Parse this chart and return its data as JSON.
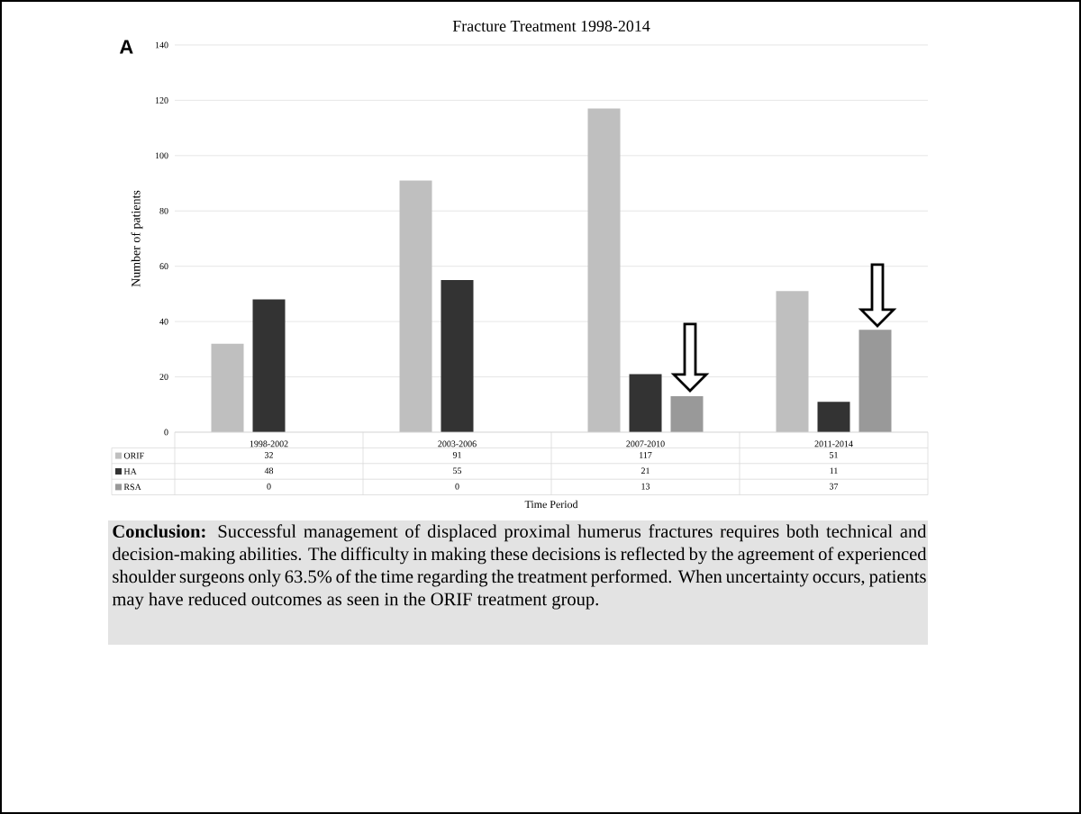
{
  "chart_data": {
    "type": "bar",
    "title": "Fracture Treatment 1998-2014",
    "xlabel": "Time Period",
    "ylabel": "Number of patients",
    "categories": [
      "1998-2002",
      "2003-2006",
      "2007-2010",
      "2011-2014"
    ],
    "series": [
      {
        "name": "ORIF",
        "color": "#bfbfbf",
        "values": [
          32,
          91,
          117,
          51
        ]
      },
      {
        "name": "HA",
        "color": "#333333",
        "values": [
          48,
          55,
          21,
          11
        ]
      },
      {
        "name": "RSA",
        "color": "#999999",
        "values": [
          0,
          0,
          13,
          37
        ]
      }
    ],
    "ylim": [
      0,
      140
    ],
    "yticks": [
      0,
      20,
      40,
      60,
      80,
      100,
      120,
      140
    ],
    "grid": "y",
    "legend": "bottom",
    "data_labels": true,
    "annotations": [
      "A",
      "**Conclusion:** Successful management of displaced proximal humerus fractures requires both technical and decision-making abilities. The difficulty in making these decisions is reflected by the agreement of experienced shoulder surgeons only 63.5% of the time regarding the treatment performed. When uncertainty occurs, patients may have reduced outcomes as seen in the ORIF treatment group."
    ]
  }
}
